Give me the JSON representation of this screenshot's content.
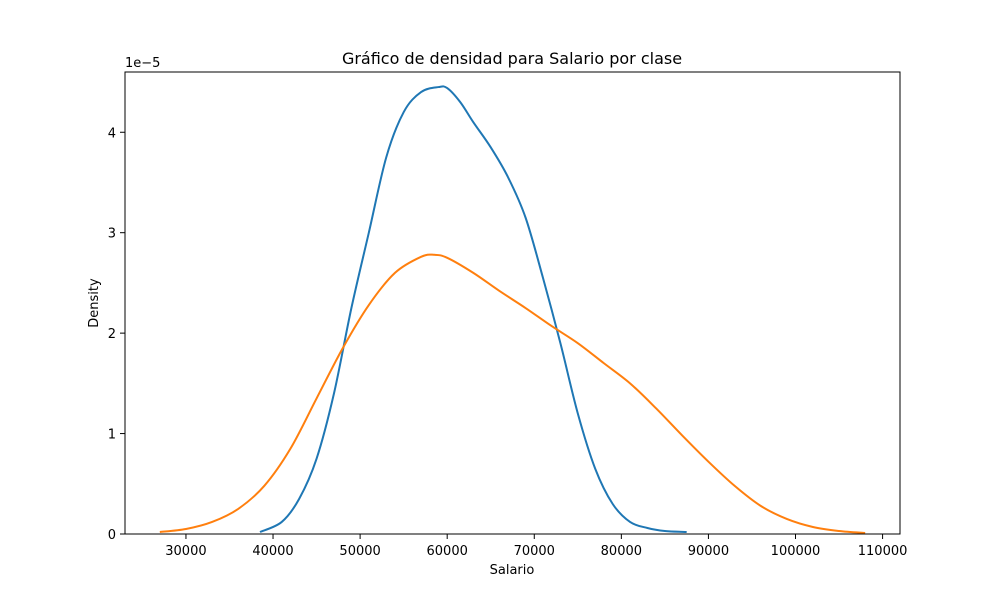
{
  "chart_data": {
    "type": "line",
    "title": "Gráfico de densidad para Salario por clase",
    "xlabel": "Salario",
    "ylabel": "Density",
    "y_scale_note": "1e−5",
    "xlim": [
      23000,
      112000
    ],
    "ylim": [
      0,
      4.6
    ],
    "grid": false,
    "x_ticks": [
      30000,
      40000,
      50000,
      60000,
      70000,
      80000,
      90000,
      100000,
      110000
    ],
    "y_ticks": [
      0,
      1,
      2,
      3,
      4
    ],
    "series": [
      {
        "color": "#1f77b4",
        "x": [
          38500,
          41000,
          43000,
          45000,
          47000,
          49000,
          51000,
          53000,
          55000,
          57000,
          59000,
          60000,
          61500,
          63000,
          65000,
          67000,
          69000,
          71000,
          73000,
          75000,
          77000,
          79000,
          81000,
          83000,
          85000,
          87500
        ],
        "y": [
          0.02,
          0.12,
          0.35,
          0.75,
          1.4,
          2.25,
          3.0,
          3.75,
          4.2,
          4.4,
          4.45,
          4.44,
          4.3,
          4.1,
          3.85,
          3.55,
          3.15,
          2.55,
          1.9,
          1.2,
          0.65,
          0.3,
          0.12,
          0.06,
          0.03,
          0.02
        ]
      },
      {
        "color": "#ff7f0e",
        "x": [
          27000,
          30000,
          33000,
          36000,
          39000,
          42000,
          45000,
          48000,
          51000,
          54000,
          57000,
          58500,
          60000,
          63000,
          66000,
          69000,
          72000,
          75000,
          78000,
          81000,
          84000,
          87000,
          90000,
          93000,
          96000,
          99000,
          102000,
          105000,
          108000
        ],
        "y": [
          0.02,
          0.05,
          0.12,
          0.25,
          0.48,
          0.85,
          1.35,
          1.85,
          2.28,
          2.6,
          2.76,
          2.78,
          2.75,
          2.6,
          2.42,
          2.25,
          2.07,
          1.9,
          1.7,
          1.5,
          1.25,
          0.98,
          0.72,
          0.48,
          0.28,
          0.15,
          0.07,
          0.03,
          0.01
        ]
      }
    ]
  }
}
